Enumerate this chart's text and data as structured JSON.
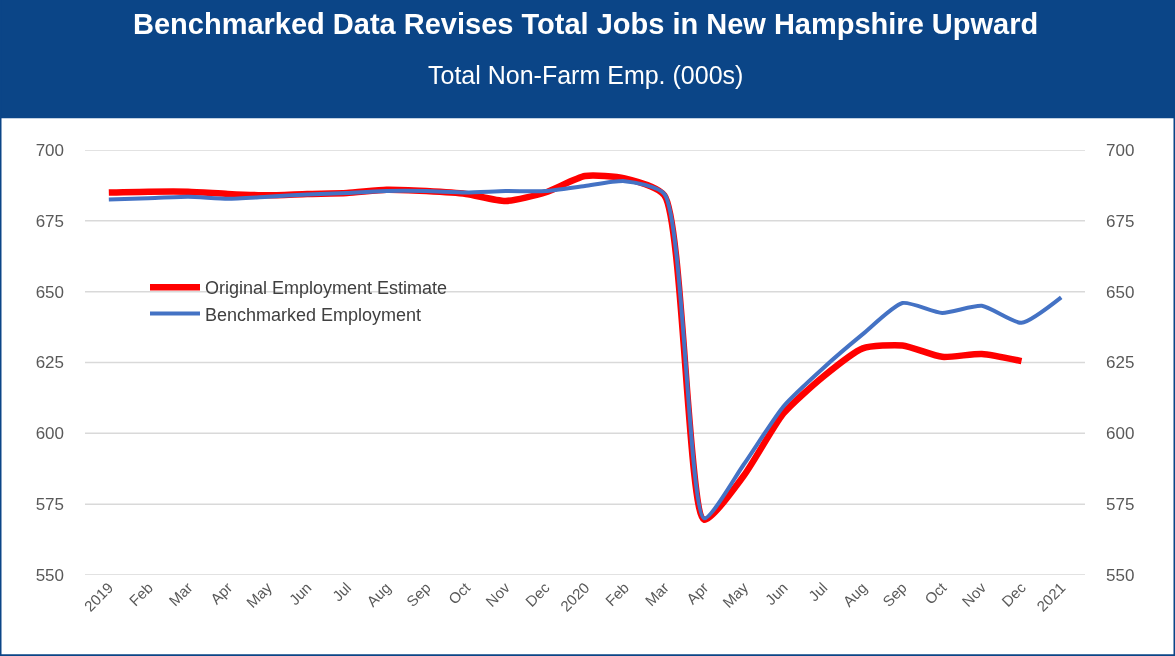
{
  "chart_data": {
    "type": "line",
    "title": "Benchmarked Data Revises Total Jobs in New Hampshire Upward",
    "subtitle": "Total Non-Farm Emp. (000s)",
    "categories": [
      "2019",
      "Feb",
      "Mar",
      "Apr",
      "May",
      "Jun",
      "Jul",
      "Aug",
      "Sep",
      "Oct",
      "Nov",
      "Dec",
      "2020",
      "Feb",
      "Mar",
      "Apr",
      "May",
      "Jun",
      "Jul",
      "Aug",
      "Sep",
      "Oct",
      "Nov",
      "Dec",
      "2021"
    ],
    "series": [
      {
        "name": "Original Employment Estimate",
        "color": "#ff0000",
        "values": [
          685,
          685.3,
          685.3,
          684.5,
          684,
          684.5,
          684.8,
          686,
          685.5,
          684.5,
          682,
          685,
          690.8,
          690,
          684,
          569.5,
          585,
          607,
          620,
          630,
          631,
          627,
          628,
          625.5,
          null
        ]
      },
      {
        "name": "Benchmarked Employment",
        "color": "#4472c4",
        "values": [
          682.5,
          683,
          683.5,
          682.8,
          683.5,
          684.3,
          684.8,
          685.5,
          685.5,
          685,
          685.5,
          685.5,
          687.3,
          689,
          684.5,
          570,
          589,
          609.5,
          623,
          635,
          646,
          642.5,
          645,
          639,
          648
        ]
      }
    ],
    "ylim": [
      550,
      700
    ],
    "yticks": [
      550,
      575,
      600,
      625,
      650,
      675,
      700
    ],
    "y2lim": [
      550,
      700
    ],
    "y2ticks": [
      550,
      575,
      600,
      625,
      650,
      675,
      700
    ],
    "grid": "y",
    "legend": "left",
    "line_style": "solid",
    "marker": "none"
  }
}
